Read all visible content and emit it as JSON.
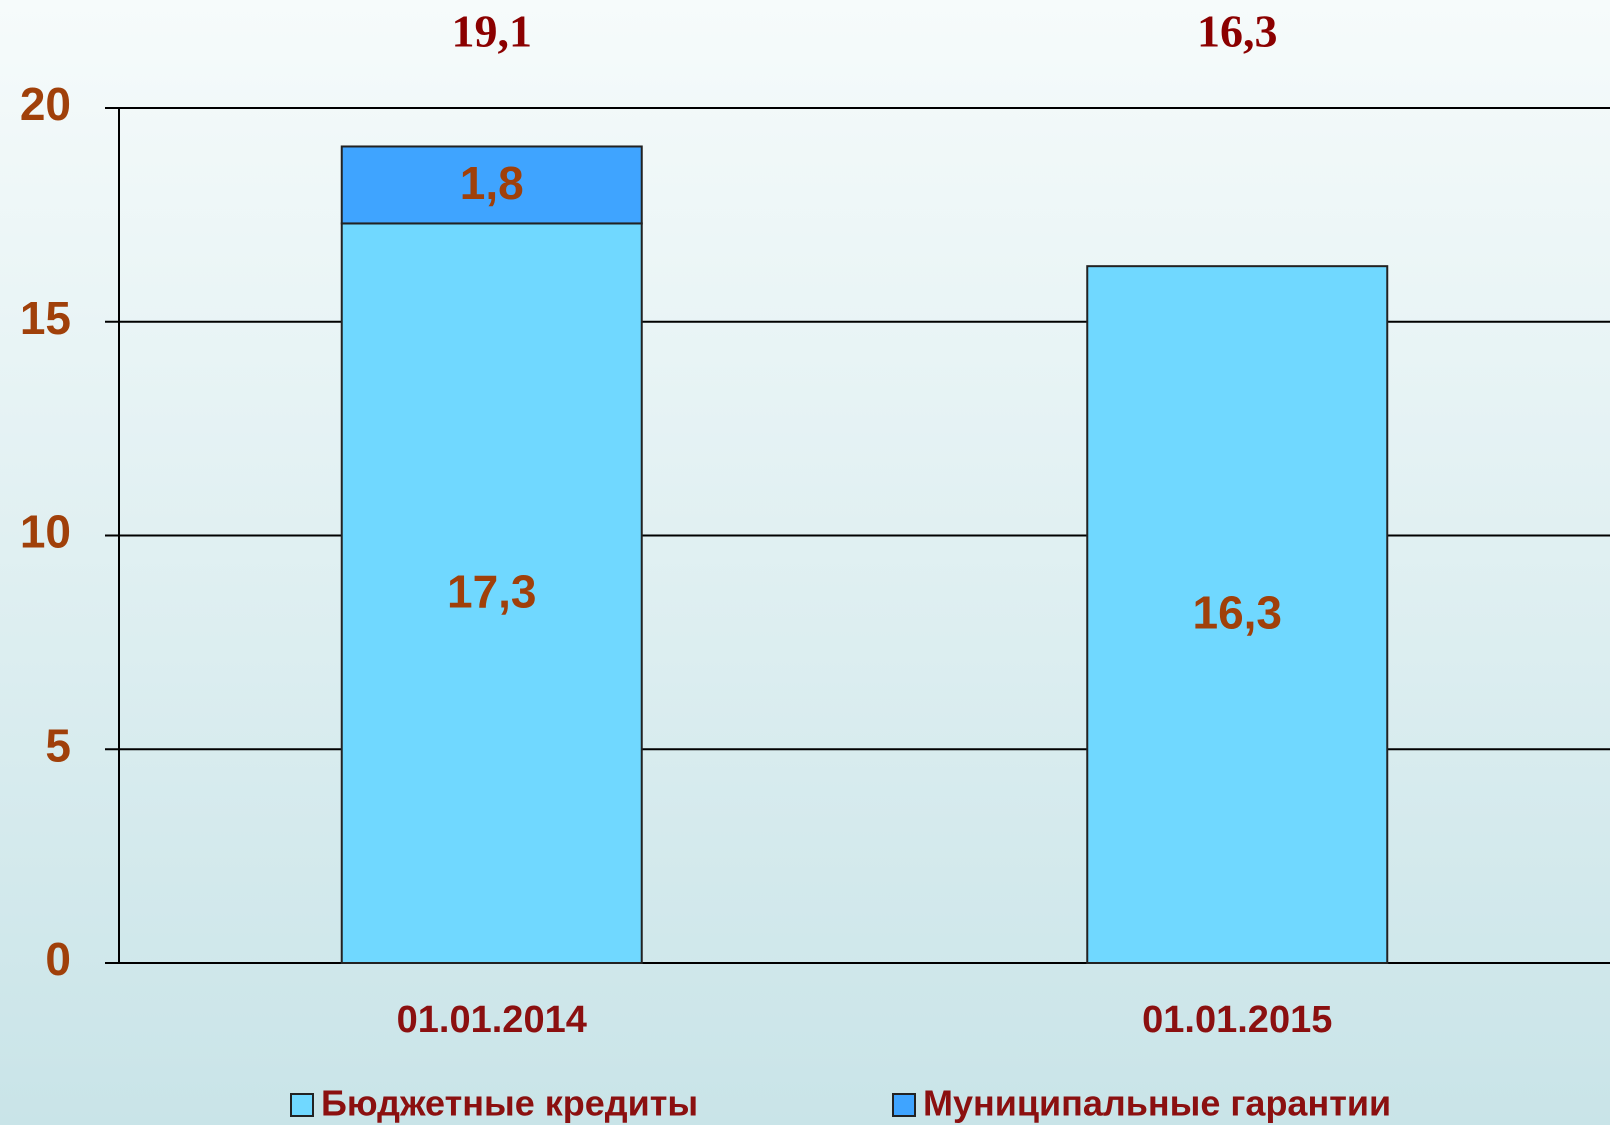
{
  "chart_data": {
    "type": "stacked-bar",
    "categories": [
      "01.01.2014",
      "01.01.2015"
    ],
    "series": [
      {
        "name": "Бюджетные кредиты",
        "color": "#70d8ff",
        "values": [
          17.3,
          16.3
        ],
        "value_labels": [
          "17,3",
          "16,3"
        ]
      },
      {
        "name": "Муниципальные гарантии",
        "color": "#3fa4ff",
        "values": [
          1.8,
          null
        ],
        "value_labels": [
          "1,8",
          null
        ]
      }
    ],
    "totals": {
      "values": [
        19.1,
        16.3
      ],
      "value_labels": [
        "19,1",
        "16,3"
      ]
    },
    "ylim": [
      0,
      20
    ],
    "yticks": [
      0,
      5,
      10,
      15,
      20
    ],
    "grid": true
  }
}
